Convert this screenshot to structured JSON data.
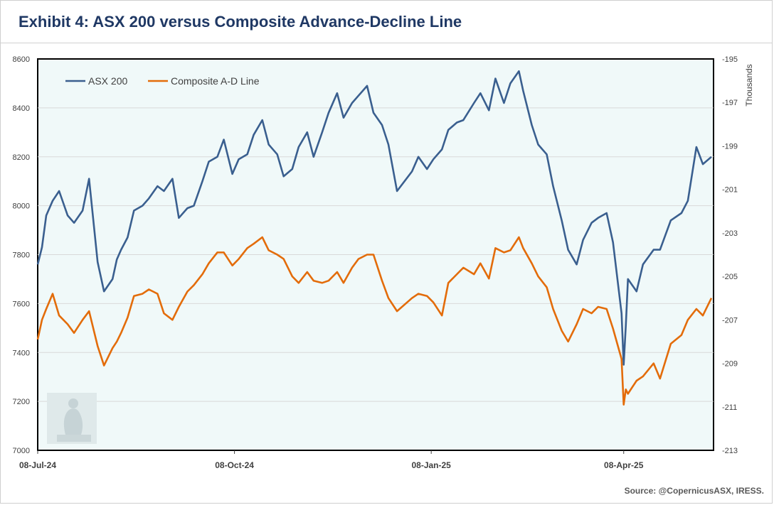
{
  "header": {
    "title": "Exhibit 4: ASX 200 versus Composite Advance-Decline Line"
  },
  "footer": {
    "source": "Source: @CopernicusASX, IRESS."
  },
  "chart_data": {
    "type": "line",
    "title": "Exhibit 4: ASX 200 versus Composite Advance-Decline Line",
    "x_labels": [
      "08-Jul-24",
      "08-Oct-24",
      "08-Jan-25",
      "08-Apr-25"
    ],
    "y_left": {
      "ylim": [
        7000,
        8600
      ],
      "ticks": [
        "7000",
        "7200",
        "7400",
        "7600",
        "7800",
        "8000",
        "8200",
        "8400",
        "8600"
      ]
    },
    "y_right": {
      "ylim": [
        -213,
        -195
      ],
      "ticks": [
        "-213",
        "-211",
        "-209",
        "-207",
        "-205",
        "-203",
        "-201",
        "-199",
        "-197",
        "-195"
      ],
      "unit": "Thousands"
    },
    "grid": true,
    "legend_position": "top-left",
    "colors": {
      "asx": "#3a5f8f",
      "ad": "#e36c0a",
      "plot_bg": "#f0f9f9",
      "grid": "#d9d9d9"
    },
    "series": [
      {
        "name": "ASX 200",
        "axis": "left",
        "x": [
          "2024-07-08",
          "2024-07-10",
          "2024-07-12",
          "2024-07-15",
          "2024-07-18",
          "2024-07-22",
          "2024-07-25",
          "2024-07-29",
          "2024-08-01",
          "2024-08-05",
          "2024-08-08",
          "2024-08-12",
          "2024-08-14",
          "2024-08-16",
          "2024-08-19",
          "2024-08-22",
          "2024-08-26",
          "2024-08-29",
          "2024-09-02",
          "2024-09-05",
          "2024-09-09",
          "2024-09-12",
          "2024-09-16",
          "2024-09-19",
          "2024-09-23",
          "2024-09-26",
          "2024-09-30",
          "2024-10-03",
          "2024-10-07",
          "2024-10-10",
          "2024-10-14",
          "2024-10-17",
          "2024-10-21",
          "2024-10-24",
          "2024-10-28",
          "2024-10-31",
          "2024-11-04",
          "2024-11-07",
          "2024-11-11",
          "2024-11-14",
          "2024-11-18",
          "2024-11-21",
          "2024-11-25",
          "2024-11-28",
          "2024-12-02",
          "2024-12-05",
          "2024-12-09",
          "2024-12-12",
          "2024-12-16",
          "2024-12-19",
          "2024-12-23",
          "2024-12-30",
          "2025-01-02",
          "2025-01-06",
          "2025-01-09",
          "2025-01-13",
          "2025-01-16",
          "2025-01-20",
          "2025-01-23",
          "2025-01-28",
          "2025-01-31",
          "2025-02-04",
          "2025-02-07",
          "2025-02-11",
          "2025-02-14",
          "2025-02-18",
          "2025-02-20",
          "2025-02-24",
          "2025-02-27",
          "2025-03-03",
          "2025-03-06",
          "2025-03-10",
          "2025-03-13",
          "2025-03-17",
          "2025-03-20",
          "2025-03-24",
          "2025-03-27",
          "2025-03-31",
          "2025-04-03",
          "2025-04-07",
          "2025-04-08",
          "2025-04-09",
          "2025-04-10",
          "2025-04-14",
          "2025-04-17",
          "2025-04-22",
          "2025-04-25",
          "2025-04-30",
          "2025-05-05",
          "2025-05-08",
          "2025-05-12",
          "2025-05-15",
          "2025-05-19"
        ],
        "y": [
          7760,
          7830,
          7960,
          8020,
          8060,
          7960,
          7930,
          7980,
          8110,
          7770,
          7650,
          7700,
          7780,
          7820,
          7870,
          7980,
          8000,
          8030,
          8080,
          8060,
          8110,
          7950,
          7990,
          8000,
          8100,
          8180,
          8200,
          8270,
          8130,
          8190,
          8210,
          8290,
          8350,
          8250,
          8210,
          8120,
          8150,
          8240,
          8300,
          8200,
          8300,
          8380,
          8460,
          8360,
          8420,
          8450,
          8490,
          8380,
          8330,
          8250,
          8060,
          8140,
          8200,
          8150,
          8190,
          8230,
          8310,
          8340,
          8350,
          8420,
          8460,
          8390,
          8520,
          8420,
          8500,
          8550,
          8470,
          8330,
          8250,
          8210,
          8080,
          7940,
          7820,
          7760,
          7860,
          7930,
          7950,
          7970,
          7850,
          7560,
          7350,
          7510,
          7700,
          7650,
          7760,
          7820,
          7820,
          7940,
          7970,
          8020,
          8240,
          8170,
          8200
        ]
      },
      {
        "name": "Composite A-D Line",
        "axis": "right",
        "x": [
          "2024-07-08",
          "2024-07-10",
          "2024-07-12",
          "2024-07-15",
          "2024-07-18",
          "2024-07-22",
          "2024-07-25",
          "2024-07-29",
          "2024-08-01",
          "2024-08-05",
          "2024-08-08",
          "2024-08-12",
          "2024-08-14",
          "2024-08-16",
          "2024-08-19",
          "2024-08-22",
          "2024-08-26",
          "2024-08-29",
          "2024-09-02",
          "2024-09-05",
          "2024-09-09",
          "2024-09-12",
          "2024-09-16",
          "2024-09-19",
          "2024-09-23",
          "2024-09-26",
          "2024-09-30",
          "2024-10-03",
          "2024-10-07",
          "2024-10-10",
          "2024-10-14",
          "2024-10-17",
          "2024-10-21",
          "2024-10-24",
          "2024-10-28",
          "2024-10-31",
          "2024-11-04",
          "2024-11-07",
          "2024-11-11",
          "2024-11-14",
          "2024-11-18",
          "2024-11-21",
          "2024-11-25",
          "2024-11-28",
          "2024-12-02",
          "2024-12-05",
          "2024-12-09",
          "2024-12-12",
          "2024-12-16",
          "2024-12-19",
          "2024-12-23",
          "2024-12-30",
          "2025-01-02",
          "2025-01-06",
          "2025-01-09",
          "2025-01-13",
          "2025-01-16",
          "2025-01-20",
          "2025-01-23",
          "2025-01-28",
          "2025-01-31",
          "2025-02-04",
          "2025-02-07",
          "2025-02-11",
          "2025-02-14",
          "2025-02-18",
          "2025-02-20",
          "2025-02-24",
          "2025-02-27",
          "2025-03-03",
          "2025-03-06",
          "2025-03-10",
          "2025-03-13",
          "2025-03-17",
          "2025-03-20",
          "2025-03-24",
          "2025-03-27",
          "2025-03-31",
          "2025-04-03",
          "2025-04-07",
          "2025-04-08",
          "2025-04-09",
          "2025-04-10",
          "2025-04-14",
          "2025-04-17",
          "2025-04-22",
          "2025-04-25",
          "2025-04-30",
          "2025-05-05",
          "2025-05-08",
          "2025-05-12",
          "2025-05-15",
          "2025-05-19"
        ],
        "y": [
          -207.9,
          -207.0,
          -206.5,
          -205.8,
          -206.8,
          -207.2,
          -207.6,
          -207.0,
          -206.6,
          -208.2,
          -209.1,
          -208.3,
          -208.0,
          -207.6,
          -206.9,
          -205.9,
          -205.8,
          -205.6,
          -205.8,
          -206.7,
          -207.0,
          -206.4,
          -205.7,
          -205.4,
          -204.9,
          -204.4,
          -203.9,
          -203.9,
          -204.5,
          -204.2,
          -203.7,
          -203.5,
          -203.2,
          -203.8,
          -204.0,
          -204.2,
          -205.0,
          -205.3,
          -204.8,
          -205.2,
          -205.3,
          -205.2,
          -204.8,
          -205.3,
          -204.6,
          -204.2,
          -204.0,
          -204.0,
          -205.2,
          -206.0,
          -206.6,
          -206.0,
          -205.8,
          -205.9,
          -206.2,
          -206.8,
          -205.3,
          -204.9,
          -204.6,
          -204.9,
          -204.4,
          -205.1,
          -203.7,
          -203.9,
          -203.8,
          -203.2,
          -203.7,
          -204.4,
          -205.0,
          -205.5,
          -206.5,
          -207.5,
          -208.0,
          -207.2,
          -206.5,
          -206.7,
          -206.4,
          -206.5,
          -207.4,
          -208.8,
          -210.9,
          -210.2,
          -210.4,
          -209.8,
          -209.6,
          -209.0,
          -209.7,
          -208.1,
          -207.7,
          -207.0,
          -206.5,
          -206.8,
          -206.0
        ]
      }
    ]
  }
}
